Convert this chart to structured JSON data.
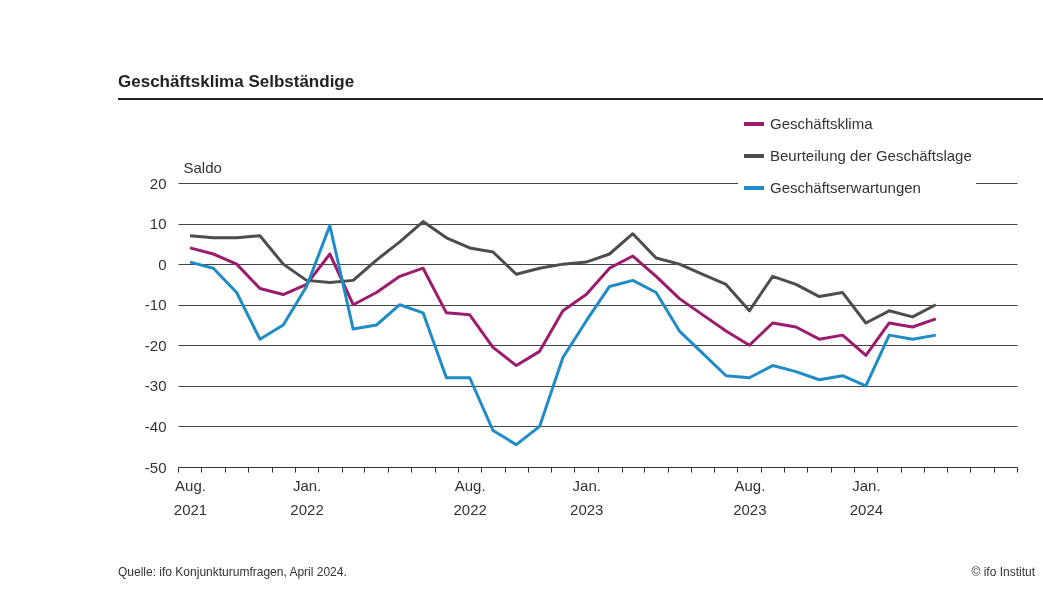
{
  "chart_data": {
    "type": "line",
    "title": "Geschäftsklima Selbständige",
    "ylabel": "Saldo",
    "x": [
      "2021-08",
      "2021-09",
      "2021-10",
      "2021-11",
      "2021-12",
      "2022-01",
      "2022-02",
      "2022-03",
      "2022-04",
      "2022-05",
      "2022-06",
      "2022-07",
      "2022-08",
      "2022-09",
      "2022-10",
      "2022-11",
      "2022-12",
      "2023-01",
      "2023-02",
      "2023-03",
      "2023-04",
      "2023-05",
      "2023-06",
      "2023-07",
      "2023-08",
      "2023-09",
      "2023-10",
      "2023-11",
      "2023-12",
      "2024-01",
      "2024-02",
      "2024-03",
      "2024-04"
    ],
    "series": [
      {
        "name": "Geschäftsklima",
        "color": "#9b1b6e",
        "values": [
          4,
          2.5,
          0,
          -6,
          -7.5,
          -5,
          2.5,
          -10,
          -7,
          -3,
          -1,
          -12,
          -12.5,
          -20.5,
          -25,
          -21.5,
          -11.5,
          -7.5,
          -1,
          2,
          -3,
          -8.5,
          -12.5,
          -16.5,
          -20,
          -14.5,
          -15.5,
          -18.5,
          -17.5,
          -22.5,
          -14.5,
          -15.5,
          -13.5
        ]
      },
      {
        "name": "Beurteilung der Geschäftslage",
        "color": "#4d4d4d",
        "values": [
          7,
          6.5,
          6.5,
          7,
          0,
          -4,
          -4.5,
          -4,
          1,
          5.5,
          10.5,
          6.5,
          4,
          3,
          -2.5,
          -1,
          0,
          0.5,
          2.5,
          7.5,
          1.5,
          0,
          -2.5,
          -5,
          -11.5,
          -3,
          -5,
          -8,
          -7,
          -14.5,
          -11.5,
          -13,
          -10
        ]
      },
      {
        "name": "Geschäftserwartungen",
        "color": "#1f8cc6",
        "values": [
          0.5,
          -1,
          -7,
          -18.5,
          -15,
          -5.5,
          9.5,
          -16,
          -15,
          -10,
          -12,
          -28,
          -28,
          -41,
          -44.5,
          -40,
          -23,
          -14,
          -5.5,
          -4,
          -7,
          -16.5,
          -22,
          -27.5,
          -28,
          -25,
          -26.5,
          -28.5,
          -27.5,
          -30,
          -17.5,
          -18.5,
          -17.5
        ]
      }
    ],
    "ylim": [
      -50,
      20
    ],
    "yticks": [
      -50,
      -40,
      -30,
      -20,
      -10,
      0,
      10,
      20
    ],
    "xlim": [
      "2021-07-16",
      "2024-07-16"
    ],
    "xticks": [
      {
        "value": "2021-07-16",
        "label": null
      },
      {
        "value": "2021-08",
        "label": "Aug.\n2021"
      },
      {
        "value": "2021-08-16",
        "label": null
      },
      {
        "value": "2021-09-16",
        "label": null
      },
      {
        "value": "2021-10-16",
        "label": null
      },
      {
        "value": "2021-11-16",
        "label": null
      },
      {
        "value": "2021-12-16",
        "label": null
      },
      {
        "value": "2022-01",
        "label": "Jan.\n2022"
      },
      {
        "value": "2022-01-16",
        "label": null
      },
      {
        "value": "2022-02-16",
        "label": null
      },
      {
        "value": "2022-03-16",
        "label": null
      },
      {
        "value": "2022-04-16",
        "label": null
      },
      {
        "value": "2022-05-16",
        "label": null
      },
      {
        "value": "2022-06-16",
        "label": null
      },
      {
        "value": "2022-07-16",
        "label": null
      },
      {
        "value": "2022-08",
        "label": "Aug.\n2022"
      },
      {
        "value": "2022-08-16",
        "label": null
      },
      {
        "value": "2022-09-16",
        "label": null
      },
      {
        "value": "2022-10-16",
        "label": null
      },
      {
        "value": "2022-11-16",
        "label": null
      },
      {
        "value": "2022-12-16",
        "label": null
      },
      {
        "value": "2023-01",
        "label": "Jan.\n2023"
      },
      {
        "value": "2023-01-16",
        "label": null
      },
      {
        "value": "2023-02-16",
        "label": null
      },
      {
        "value": "2023-03-16",
        "label": null
      },
      {
        "value": "2023-04-16",
        "label": null
      },
      {
        "value": "2023-05-16",
        "label": null
      },
      {
        "value": "2023-06-16",
        "label": null
      },
      {
        "value": "2023-07-16",
        "label": null
      },
      {
        "value": "2023-08",
        "label": "Aug.\n2023"
      },
      {
        "value": "2023-08-16",
        "label": null
      },
      {
        "value": "2023-09-16",
        "label": null
      },
      {
        "value": "2023-10-16",
        "label": null
      },
      {
        "value": "2023-11-16",
        "label": null
      },
      {
        "value": "2023-12-16",
        "label": null
      },
      {
        "value": "2024-01",
        "label": "Jan.\n2024"
      },
      {
        "value": "2024-01-16",
        "label": null
      },
      {
        "value": "2024-02-16",
        "label": null
      },
      {
        "value": "2024-03-16",
        "label": null
      },
      {
        "value": "2024-04-16",
        "label": null
      },
      {
        "value": "2024-05-16",
        "label": null
      },
      {
        "value": "2024-06-16",
        "label": null
      },
      {
        "value": "2024-07-16",
        "label": null
      }
    ],
    "grid": "y",
    "legend": "top right",
    "line_style": "solid",
    "annotations": [
      "Quelle: ifo Konjunkturumfragen, April 2024.",
      "© ifo Institut"
    ]
  }
}
